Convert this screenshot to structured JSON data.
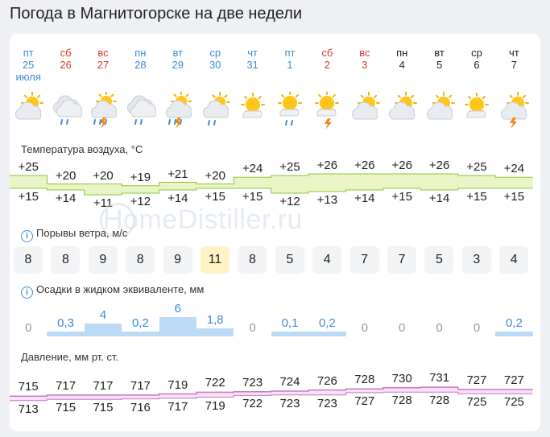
{
  "page": {
    "title": "Погода в Магнитогорске на две недели"
  },
  "days": [
    {
      "name": "пт",
      "date": "25",
      "month": "июля",
      "color": "blue",
      "icon": "partly-cloudy-icon"
    },
    {
      "name": "сб",
      "date": "26",
      "month": "",
      "color": "red",
      "icon": "cloudy-drizzle-icon"
    },
    {
      "name": "вс",
      "date": "27",
      "month": "",
      "color": "red",
      "icon": "partly-cloudy-thunder-rain-icon"
    },
    {
      "name": "пн",
      "date": "28",
      "month": "",
      "color": "blue",
      "icon": "cloudy-drizzle-icon"
    },
    {
      "name": "вт",
      "date": "29",
      "month": "",
      "color": "blue",
      "icon": "partly-cloudy-thunder-rain-icon"
    },
    {
      "name": "ср",
      "date": "30",
      "month": "",
      "color": "blue",
      "icon": "partly-cloudy-drizzle-icon"
    },
    {
      "name": "чт",
      "date": "31",
      "month": "",
      "color": "blue",
      "icon": "sun-cloud-icon"
    },
    {
      "name": "пт",
      "date": "1",
      "month": "",
      "color": "blue",
      "icon": "sun-cloud-drizzle-icon"
    },
    {
      "name": "сб",
      "date": "2",
      "month": "",
      "color": "red",
      "icon": "sun-cloud-thunder-icon"
    },
    {
      "name": "вс",
      "date": "3",
      "month": "",
      "color": "red",
      "icon": "partly-cloudy-icon"
    },
    {
      "name": "пн",
      "date": "4",
      "month": "",
      "color": "dark",
      "icon": "partly-cloudy-icon"
    },
    {
      "name": "вт",
      "date": "5",
      "month": "",
      "color": "dark",
      "icon": "partly-cloudy-icon"
    },
    {
      "name": "ср",
      "date": "6",
      "month": "",
      "color": "dark",
      "icon": "sun-cloud-icon"
    },
    {
      "name": "чт",
      "date": "7",
      "month": "",
      "color": "dark",
      "icon": "partly-cloudy-thunder-icon"
    }
  ],
  "temperature": {
    "label": "Температура воздуха, °C",
    "max": [
      "+25",
      "+20",
      "+20",
      "+19",
      "+21",
      "+20",
      "+24",
      "+25",
      "+26",
      "+26",
      "+26",
      "+26",
      "+25",
      "+24"
    ],
    "min": [
      "+15",
      "+14",
      "+11",
      "+12",
      "+14",
      "+15",
      "+15",
      "+12",
      "+13",
      "+14",
      "+15",
      "+14",
      "+15",
      "+15"
    ],
    "max_num": [
      25,
      20,
      20,
      19,
      21,
      20,
      24,
      25,
      26,
      26,
      26,
      26,
      25,
      24
    ],
    "min_num": [
      15,
      14,
      11,
      12,
      14,
      15,
      15,
      12,
      13,
      14,
      15,
      14,
      15,
      15
    ]
  },
  "wind_gusts": {
    "label": "Порывы ветра, м/с",
    "values": [
      "8",
      "8",
      "9",
      "8",
      "9",
      "11",
      "8",
      "5",
      "4",
      "7",
      "7",
      "5",
      "3",
      "4"
    ],
    "highlight_index": 5
  },
  "precipitation": {
    "label": "Осадки в жидком эквиваленте, мм",
    "values": [
      "0",
      "0,3",
      "4",
      "0,2",
      "6",
      "1,8",
      "0",
      "0,1",
      "0,2",
      "0",
      "0",
      "0",
      "0",
      "0,2"
    ],
    "values_num": [
      0,
      0.3,
      4,
      0.2,
      6,
      1.8,
      0,
      0.1,
      0.2,
      0,
      0,
      0,
      0,
      0.2
    ]
  },
  "pressure": {
    "label": "Давление, мм рт. ст.",
    "max": [
      "715",
      "717",
      "717",
      "717",
      "719",
      "722",
      "723",
      "724",
      "726",
      "728",
      "730",
      "731",
      "727",
      "727"
    ],
    "min": [
      "713",
      "715",
      "715",
      "716",
      "717",
      "719",
      "722",
      "723",
      "723",
      "727",
      "728",
      "728",
      "725",
      "725"
    ],
    "max_num": [
      715,
      717,
      717,
      717,
      719,
      722,
      723,
      724,
      726,
      728,
      730,
      731,
      727,
      727
    ],
    "min_num": [
      713,
      715,
      715,
      716,
      717,
      719,
      722,
      723,
      723,
      727,
      728,
      728,
      725,
      725
    ]
  },
  "watermark": "HomeDistiller.ru",
  "colors": {
    "blue": "#3d8bd6",
    "red": "#d33a2c",
    "temp_fill": "#e9f5c4",
    "temp_line": "#8cc63f",
    "precip": "#bcdaf5",
    "pressure_line": "#c878c8",
    "pressure_fill": "#f7e2f4",
    "gust_highlight": "#fdf3c6"
  }
}
